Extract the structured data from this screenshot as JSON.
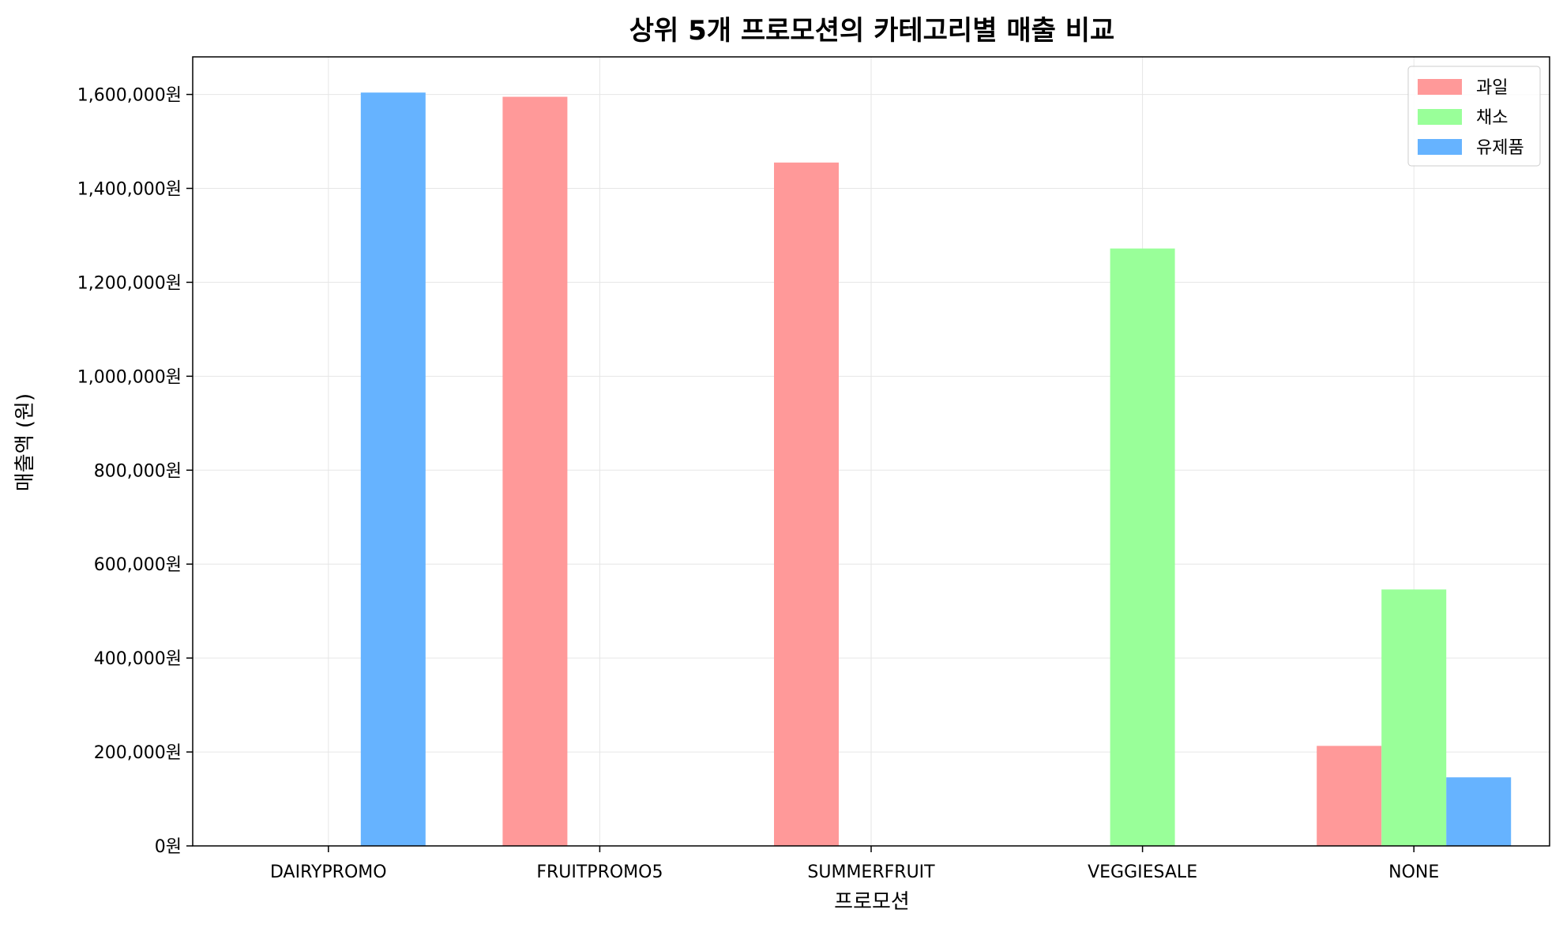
{
  "chart_data": {
    "type": "bar",
    "title": "상위 5개 프로모션의 카테고리별 매출 비교",
    "xlabel": "프로모션",
    "ylabel": "매출액 (원)",
    "categories": [
      "DAIRYPROMO",
      "FRUITPROMO5",
      "SUMMERFRUIT",
      "VEGGIESALE",
      "NONE"
    ],
    "series": [
      {
        "name": "과일",
        "color": "#ff9999",
        "values": [
          0,
          1595000,
          1455000,
          0,
          213000
        ]
      },
      {
        "name": "채소",
        "color": "#99ff99",
        "values": [
          0,
          0,
          0,
          1272000,
          546000
        ]
      },
      {
        "name": "유제품",
        "color": "#66b3ff",
        "values": [
          1604000,
          0,
          0,
          0,
          146000
        ]
      }
    ],
    "ylim": [
      0,
      1680000
    ],
    "yticks": [
      0,
      200000,
      400000,
      600000,
      800000,
      1000000,
      1200000,
      1400000,
      1600000
    ],
    "ytick_labels": [
      "0원",
      "200,000원",
      "400,000원",
      "600,000원",
      "800,000원",
      "1,000,000원",
      "1,200,000원",
      "1,400,000원",
      "1,600,000원"
    ],
    "grid": true,
    "legend_position": "top-right"
  }
}
